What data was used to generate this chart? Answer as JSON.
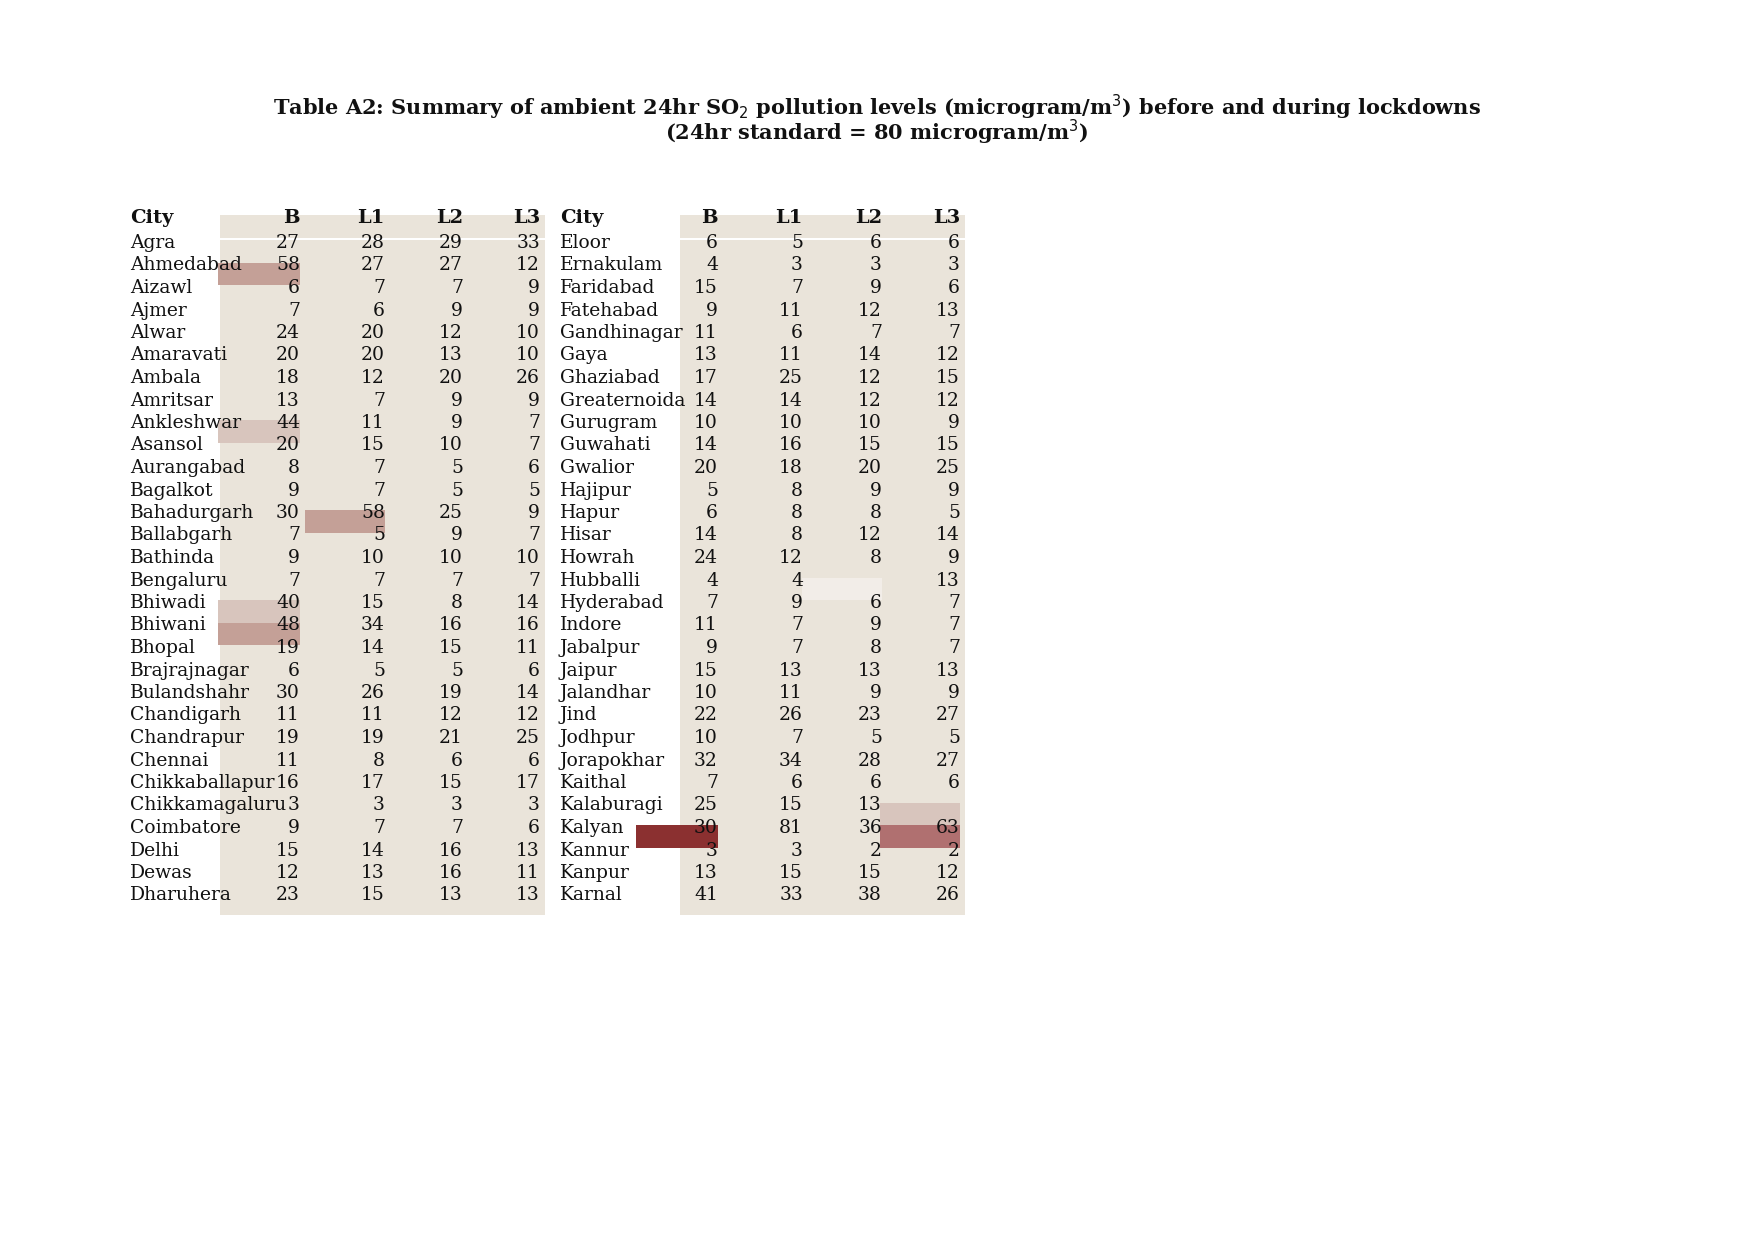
{
  "bg_color": "#FFFFFF",
  "table_bg": "#EAE4DA",
  "highlight_medium": "#C4A097",
  "highlight_light": "#D8C5BD",
  "highlight_dark": "#8B3030",
  "highlight_dark2": "#B07070",
  "left_data": [
    [
      "Agra",
      27,
      28,
      29,
      33
    ],
    [
      "Ahmedabad",
      58,
      27,
      27,
      12
    ],
    [
      "Aizawl",
      6,
      7,
      7,
      9
    ],
    [
      "Ajmer",
      7,
      6,
      9,
      9
    ],
    [
      "Alwar",
      24,
      20,
      12,
      10
    ],
    [
      "Amaravati",
      20,
      20,
      13,
      10
    ],
    [
      "Ambala",
      18,
      12,
      20,
      26
    ],
    [
      "Amritsar",
      13,
      7,
      9,
      9
    ],
    [
      "Ankleshwar",
      44,
      11,
      9,
      7
    ],
    [
      "Asansol",
      20,
      15,
      10,
      7
    ],
    [
      "Aurangabad",
      8,
      7,
      5,
      6
    ],
    [
      "Bagalkot",
      9,
      7,
      5,
      5
    ],
    [
      "Bahadurgarh",
      30,
      58,
      25,
      9
    ],
    [
      "Ballabgarh",
      7,
      5,
      9,
      7
    ],
    [
      "Bathinda",
      9,
      10,
      10,
      10
    ],
    [
      "Bengaluru",
      7,
      7,
      7,
      7
    ],
    [
      "Bhiwadi",
      40,
      15,
      8,
      14
    ],
    [
      "Bhiwani",
      48,
      34,
      16,
      16
    ],
    [
      "Bhopal",
      19,
      14,
      15,
      11
    ],
    [
      "Brajrajnagar",
      6,
      5,
      5,
      6
    ],
    [
      "Bulandshahr",
      30,
      26,
      19,
      14
    ],
    [
      "Chandigarh",
      11,
      11,
      12,
      12
    ],
    [
      "Chandrapur",
      19,
      19,
      21,
      25
    ],
    [
      "Chennai",
      11,
      8,
      6,
      6
    ],
    [
      "Chikkaballapur",
      16,
      17,
      15,
      17
    ],
    [
      "Chikkamagaluru",
      3,
      3,
      3,
      3
    ],
    [
      "Coimbatore",
      9,
      7,
      7,
      6
    ],
    [
      "Delhi",
      15,
      14,
      16,
      13
    ],
    [
      "Dewas",
      12,
      13,
      16,
      11
    ],
    [
      "Dharuhera",
      23,
      15,
      13,
      13
    ]
  ],
  "right_data": [
    [
      "Eloor",
      6,
      5,
      6,
      6
    ],
    [
      "Ernakulam",
      4,
      3,
      3,
      3
    ],
    [
      "Faridabad",
      15,
      7,
      9,
      6
    ],
    [
      "Fatehabad",
      9,
      11,
      12,
      13
    ],
    [
      "Gandhinagar",
      11,
      6,
      7,
      7
    ],
    [
      "Gaya",
      13,
      11,
      14,
      12
    ],
    [
      "Ghaziabad",
      17,
      25,
      12,
      15
    ],
    [
      "Greaternoida",
      14,
      14,
      12,
      12
    ],
    [
      "Gurugram",
      10,
      10,
      10,
      9
    ],
    [
      "Guwahati",
      14,
      16,
      15,
      15
    ],
    [
      "Gwalior",
      20,
      18,
      20,
      25
    ],
    [
      "Hajipur",
      5,
      8,
      9,
      9
    ],
    [
      "Hapur",
      6,
      8,
      8,
      5
    ],
    [
      "Hisar",
      14,
      8,
      12,
      14
    ],
    [
      "Howrah",
      24,
      12,
      8,
      9
    ],
    [
      "Hubballi",
      4,
      4,
      null,
      13
    ],
    [
      "Hyderabad",
      7,
      9,
      6,
      7
    ],
    [
      "Indore",
      11,
      7,
      9,
      7
    ],
    [
      "Jabalpur",
      9,
      7,
      8,
      7
    ],
    [
      "Jaipur",
      15,
      13,
      13,
      13
    ],
    [
      "Jalandhar",
      10,
      11,
      9,
      9
    ],
    [
      "Jind",
      22,
      26,
      23,
      27
    ],
    [
      "Jodhpur",
      10,
      7,
      5,
      5
    ],
    [
      "Jorapokhar",
      32,
      34,
      28,
      27
    ],
    [
      "Kaithal",
      7,
      6,
      6,
      6
    ],
    [
      "Kalaburagi",
      25,
      15,
      13,
      null
    ],
    [
      "Kalyan",
      30,
      81,
      36,
      63
    ],
    [
      "Kannur",
      3,
      3,
      2,
      2
    ],
    [
      "Kanpur",
      13,
      15,
      15,
      12
    ],
    [
      "Karnal",
      41,
      33,
      38,
      26
    ]
  ],
  "title1": "Table A2: Summary of ambient 24hr SO$_2$ pollution levels (microgram/m$^3$) before and during lockdowns",
  "title2": "(24hr standard = 80 microgram/m$^3$)"
}
